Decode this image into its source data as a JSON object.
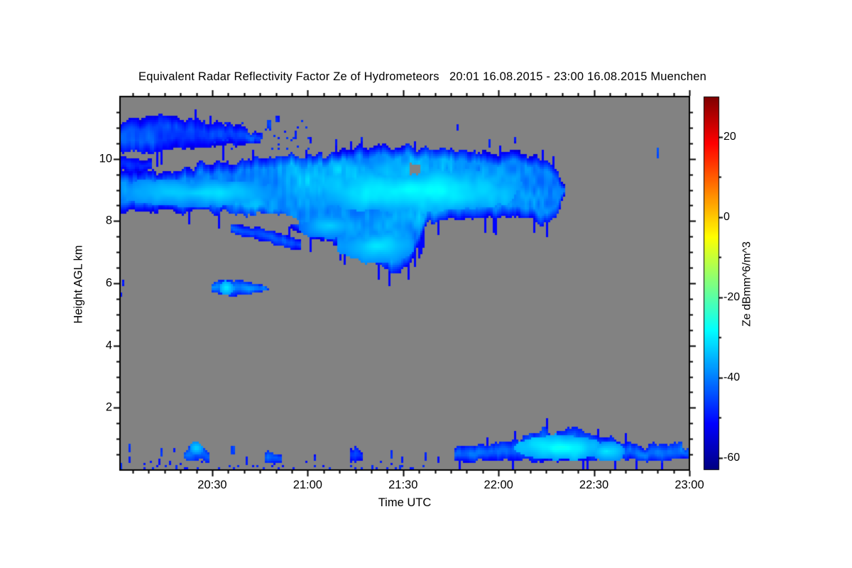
{
  "title": "Equivalent Radar Reflectivity Factor Ze of Hydrometeors   20:01 16.08.2015 - 23:00 16.08.2015 Muenchen",
  "colors": {
    "page_bg": "#ffffff",
    "plot_bg": "#828282",
    "frame": "#000000",
    "text": "#000000"
  },
  "chart_data": {
    "type": "heatmap",
    "title": "Equivalent Radar Reflectivity Factor Ze of Hydrometeors   20:01 16.08.2015 - 23:00 16.08.2015 Muenchen",
    "site": "Muenchen",
    "period": "20:01 16.08.2015 - 23:00 16.08.2015",
    "xlabel": "Time UTC",
    "ylabel": "Height AGL km",
    "colorbar_label": "Ze dBmm^6/m^3",
    "background_color": "#828282",
    "x_axis": {
      "start_label": "20:01",
      "end_label": "23:00",
      "span_min": 179,
      "major_ticks": [
        {
          "t": 30,
          "label": "20:30"
        },
        {
          "t": 60,
          "label": "21:00"
        },
        {
          "t": 90,
          "label": "21:30"
        },
        {
          "t": 120,
          "label": "22:00"
        },
        {
          "t": 150,
          "label": "22:30"
        },
        {
          "t": 180,
          "label": "23:00"
        }
      ],
      "minor_step_min": 5
    },
    "y_axis": {
      "min_km": 0,
      "max_km": 12,
      "major_ticks": [
        2,
        4,
        6,
        8,
        10
      ],
      "minor_step_km": 0.5
    },
    "colorbar": {
      "colormap": "jet",
      "vmin": -63,
      "vmax": 30,
      "major_ticks": [
        20,
        0,
        -20,
        -40,
        -60
      ],
      "minor_ticks": [
        10,
        -10,
        -30,
        -50
      ]
    },
    "features": [
      {
        "id": "upper-cirrus-band",
        "kind": "band",
        "seed": 3,
        "pts": [
          [
            0,
            11.25,
            10.22
          ],
          [
            8,
            11.32,
            10.18
          ],
          [
            16,
            11.38,
            10.28
          ],
          [
            24,
            11.22,
            10.33
          ],
          [
            30,
            11.12,
            10.38
          ],
          [
            36,
            11.18,
            10.42
          ],
          [
            42,
            10.95,
            10.48
          ],
          [
            45.5,
            10.75,
            10.52
          ]
        ],
        "core": -44,
        "var": 5,
        "edge": 8,
        "ragTop": 0.18,
        "ragBot": 0.15,
        "fringe": true
      },
      {
        "id": "left-patch",
        "kind": "band",
        "seed": 5,
        "pts": [
          [
            0,
            10.12,
            9.6
          ],
          [
            5,
            10.08,
            9.55
          ],
          [
            11,
            9.95,
            9.62
          ]
        ],
        "core": -48,
        "var": 3,
        "edge": 5,
        "ragTop": 0.12,
        "ragBot": 0.1
      },
      {
        "id": "main-cloud-band",
        "kind": "band",
        "seed": 7,
        "pts": [
          [
            0,
            9.55,
            8.35
          ],
          [
            10,
            9.62,
            8.32
          ],
          [
            20,
            9.72,
            8.3
          ],
          [
            30,
            9.85,
            8.27
          ],
          [
            40,
            9.95,
            8.22
          ],
          [
            50,
            10.0,
            7.95
          ],
          [
            58,
            10.05,
            7.6
          ],
          [
            66,
            10.15,
            7.3
          ],
          [
            74,
            10.3,
            6.95
          ],
          [
            82,
            10.45,
            6.6
          ],
          [
            88,
            10.42,
            6.35
          ],
          [
            92,
            10.35,
            6.5
          ],
          [
            95,
            10.3,
            7.25
          ],
          [
            98,
            10.3,
            7.95
          ],
          [
            104,
            10.25,
            8.0
          ],
          [
            112,
            10.15,
            8.05
          ],
          [
            120,
            10.18,
            8.08
          ],
          [
            127,
            10.2,
            8.1
          ],
          [
            132,
            10.05,
            7.95
          ],
          [
            136,
            9.8,
            7.9
          ],
          [
            139,
            9.5,
            8.3
          ],
          [
            141,
            9.1,
            8.85
          ]
        ],
        "core": -38,
        "var": 7,
        "edge": 13,
        "ragTop": 0.22,
        "ragBot": 0.18,
        "fringe": true
      },
      {
        "id": "bright-core-left",
        "kind": "blob",
        "seed": 9,
        "t": 25,
        "h": 8.9,
        "rt": 27,
        "rh": 0.45,
        "core": -30,
        "var": 4,
        "edge": 9
      },
      {
        "id": "bright-core-right",
        "kind": "blob",
        "seed": 11,
        "t": 92,
        "h": 9.0,
        "rt": 35,
        "rh": 0.7,
        "core": -28,
        "var": 4,
        "edge": 9
      },
      {
        "id": "bright-core-hang",
        "kind": "blob",
        "seed": 13,
        "t": 81,
        "h": 7.2,
        "rt": 12,
        "rh": 0.55,
        "core": -30,
        "var": 3,
        "edge": 9
      },
      {
        "id": "bright-core-mid",
        "kind": "blob",
        "seed": 15,
        "t": 67,
        "h": 7.85,
        "rt": 10,
        "rh": 0.4,
        "core": -33,
        "var": 3,
        "edge": 8
      },
      {
        "id": "descending-finger",
        "kind": "band",
        "seed": 17,
        "pts": [
          [
            36,
            7.95,
            7.58
          ],
          [
            44,
            7.8,
            7.42
          ],
          [
            52,
            7.55,
            7.18
          ],
          [
            58,
            7.38,
            7.05
          ]
        ],
        "core": -44,
        "var": 3,
        "edge": 7,
        "ragTop": 0.1,
        "ragBot": 0.1
      },
      {
        "id": "hole-below-band",
        "kind": "hole",
        "seed": 19,
        "pts": [
          [
            41,
            8.2,
            7.86
          ],
          [
            46,
            8.26,
            7.8
          ],
          [
            52,
            8.2,
            7.82
          ],
          [
            57,
            8.04,
            7.9
          ]
        ],
        "rag": 0.07
      },
      {
        "id": "hole-small",
        "kind": "hole",
        "seed": 21,
        "pts": [
          [
            92.3,
            9.84,
            9.5
          ],
          [
            95.7,
            9.78,
            9.56
          ]
        ],
        "rag": 0.05
      },
      {
        "id": "altocumulus-lens",
        "kind": "band",
        "seed": 23,
        "pts": [
          [
            29.5,
            5.95,
            5.78
          ],
          [
            32,
            6.08,
            5.66
          ],
          [
            36,
            6.13,
            5.6
          ],
          [
            40,
            6.08,
            5.62
          ],
          [
            44,
            6.0,
            5.68
          ],
          [
            48,
            5.9,
            5.78
          ]
        ],
        "core": -40,
        "var": 4,
        "edge": 9,
        "ragTop": 0.07,
        "ragBot": 0.07
      },
      {
        "id": "lens-bright-core",
        "kind": "blob",
        "seed": 25,
        "t": 34.5,
        "h": 5.85,
        "rt": 2.4,
        "rh": 0.22,
        "core": -29,
        "var": 3,
        "edge": 8
      },
      {
        "id": "boundary-layer-band",
        "kind": "band",
        "seed": 27,
        "pts": [
          [
            106,
            0.75,
            0.3
          ],
          [
            112,
            0.8,
            0.28
          ],
          [
            118,
            0.85,
            0.3
          ],
          [
            124,
            0.95,
            0.3
          ],
          [
            129,
            1.05,
            0.3
          ],
          [
            134,
            1.3,
            0.28
          ],
          [
            138,
            1.15,
            0.3
          ],
          [
            143,
            1.35,
            0.3
          ],
          [
            148,
            1.3,
            0.32
          ],
          [
            153,
            1.05,
            0.35
          ],
          [
            158,
            0.95,
            0.3
          ],
          [
            163,
            0.75,
            0.3
          ],
          [
            168,
            0.8,
            0.3
          ],
          [
            173,
            0.85,
            0.32
          ],
          [
            179.5,
            0.8,
            0.35
          ]
        ],
        "core": -41,
        "var": 6,
        "edge": 8,
        "ragTop": 0.2,
        "ragBot": 0.1,
        "fringe": true
      },
      {
        "id": "bl-bright-core-1",
        "kind": "blob",
        "seed": 29,
        "t": 140,
        "h": 0.72,
        "rt": 14,
        "rh": 0.4,
        "core": -26,
        "var": 5,
        "edge": 10
      },
      {
        "id": "bl-bright-core-2",
        "kind": "blob",
        "seed": 31,
        "t": 154,
        "h": 0.6,
        "rt": 6,
        "rh": 0.3,
        "core": -30,
        "var": 4,
        "edge": 9
      },
      {
        "id": "drizzle-arc-clump",
        "kind": "band",
        "seed": 33,
        "pts": [
          [
            21,
            0.52,
            0.3
          ],
          [
            23,
            0.75,
            0.3
          ],
          [
            25,
            0.9,
            0.32
          ],
          [
            27,
            0.8,
            0.3
          ],
          [
            29,
            0.55,
            0.28
          ]
        ],
        "core": -42,
        "var": 6,
        "edge": 6,
        "ragTop": 0.12,
        "ragBot": 0.08
      },
      {
        "id": "arc-bright-core",
        "kind": "blob",
        "seed": 35,
        "t": 25,
        "h": 0.7,
        "rt": 2.2,
        "rh": 0.18,
        "core": -30,
        "var": 4,
        "edge": 8
      },
      {
        "id": "low-clump-a",
        "kind": "band",
        "seed": 37,
        "pts": [
          [
            46.5,
            0.5,
            0.22
          ],
          [
            49,
            0.6,
            0.2
          ],
          [
            52,
            0.45,
            0.22
          ]
        ],
        "core": -44,
        "var": 4,
        "edge": 6,
        "ragTop": 0.1,
        "ragBot": 0.06
      },
      {
        "id": "low-clump-b",
        "kind": "band",
        "seed": 39,
        "pts": [
          [
            73,
            0.65,
            0.3
          ],
          [
            75,
            0.72,
            0.28
          ],
          [
            77,
            0.55,
            0.3
          ]
        ],
        "core": -46,
        "var": 3,
        "edge": 5,
        "ragTop": 0.08,
        "ragBot": 0.06
      },
      {
        "id": "ground-speck-strip",
        "kind": "strip",
        "seed": 41,
        "t0": 8,
        "t1": 102,
        "h0": 0.05,
        "h1": 0.3,
        "prob": 0.8,
        "v": -49
      },
      {
        "id": "high-speck-strip",
        "kind": "strip",
        "seed": 43,
        "t0": 24,
        "t1": 62,
        "h0": 10.3,
        "h1": 11.25,
        "prob": 0.84,
        "v": -48
      },
      {
        "id": "isolated-specks",
        "kind": "specks",
        "list": [
          [
            4,
            0.72,
            0.8,
            0.25,
            -46
          ],
          [
            4.2,
            0.33,
            0.8,
            0.2,
            -50
          ],
          [
            1.5,
            0.15,
            1,
            0.2,
            -48
          ],
          [
            14,
            0.55,
            0.7,
            0.3,
            -47
          ],
          [
            13.5,
            0.28,
            0.7,
            0.18,
            -50
          ],
          [
            18,
            0.62,
            0.6,
            0.15,
            -50
          ],
          [
            36.5,
            0.62,
            0.8,
            0.3,
            -46
          ],
          [
            41,
            0.3,
            0.7,
            0.25,
            -49
          ],
          [
            62,
            0.42,
            0.7,
            0.2,
            -50
          ],
          [
            86.5,
            0.5,
            0.8,
            0.3,
            -47
          ],
          [
            90,
            0.35,
            0.6,
            0.2,
            -50
          ],
          [
            97,
            0.45,
            0.7,
            0.25,
            -48
          ],
          [
            101,
            0.35,
            0.6,
            0.2,
            -50
          ],
          [
            0.8,
            5.85,
            0.6,
            0.28,
            -48
          ],
          [
            1.8,
            6.02,
            0.5,
            0.2,
            -50
          ],
          [
            1.2,
            5.62,
            0.5,
            0.15,
            -51
          ],
          [
            33.5,
            10.72,
            1.2,
            0.3,
            -46
          ],
          [
            48,
            11.1,
            1.5,
            0.3,
            -46
          ],
          [
            50.5,
            11.28,
            0.8,
            0.2,
            -49
          ],
          [
            56,
            10.78,
            0.8,
            0.25,
            -49
          ],
          [
            61,
            10.6,
            0.6,
            0.2,
            -51
          ],
          [
            69,
            10.55,
            0.5,
            0.18,
            -51
          ],
          [
            77,
            10.6,
            0.6,
            0.2,
            -50
          ],
          [
            96,
            10.55,
            0.5,
            0.3,
            -49
          ],
          [
            107,
            11.0,
            0.6,
            0.25,
            -49
          ],
          [
            117,
            10.5,
            0.7,
            0.28,
            -48
          ],
          [
            125,
            10.62,
            0.5,
            0.2,
            -50
          ],
          [
            170,
            10.2,
            0.9,
            0.35,
            -44
          ]
        ]
      }
    ]
  }
}
